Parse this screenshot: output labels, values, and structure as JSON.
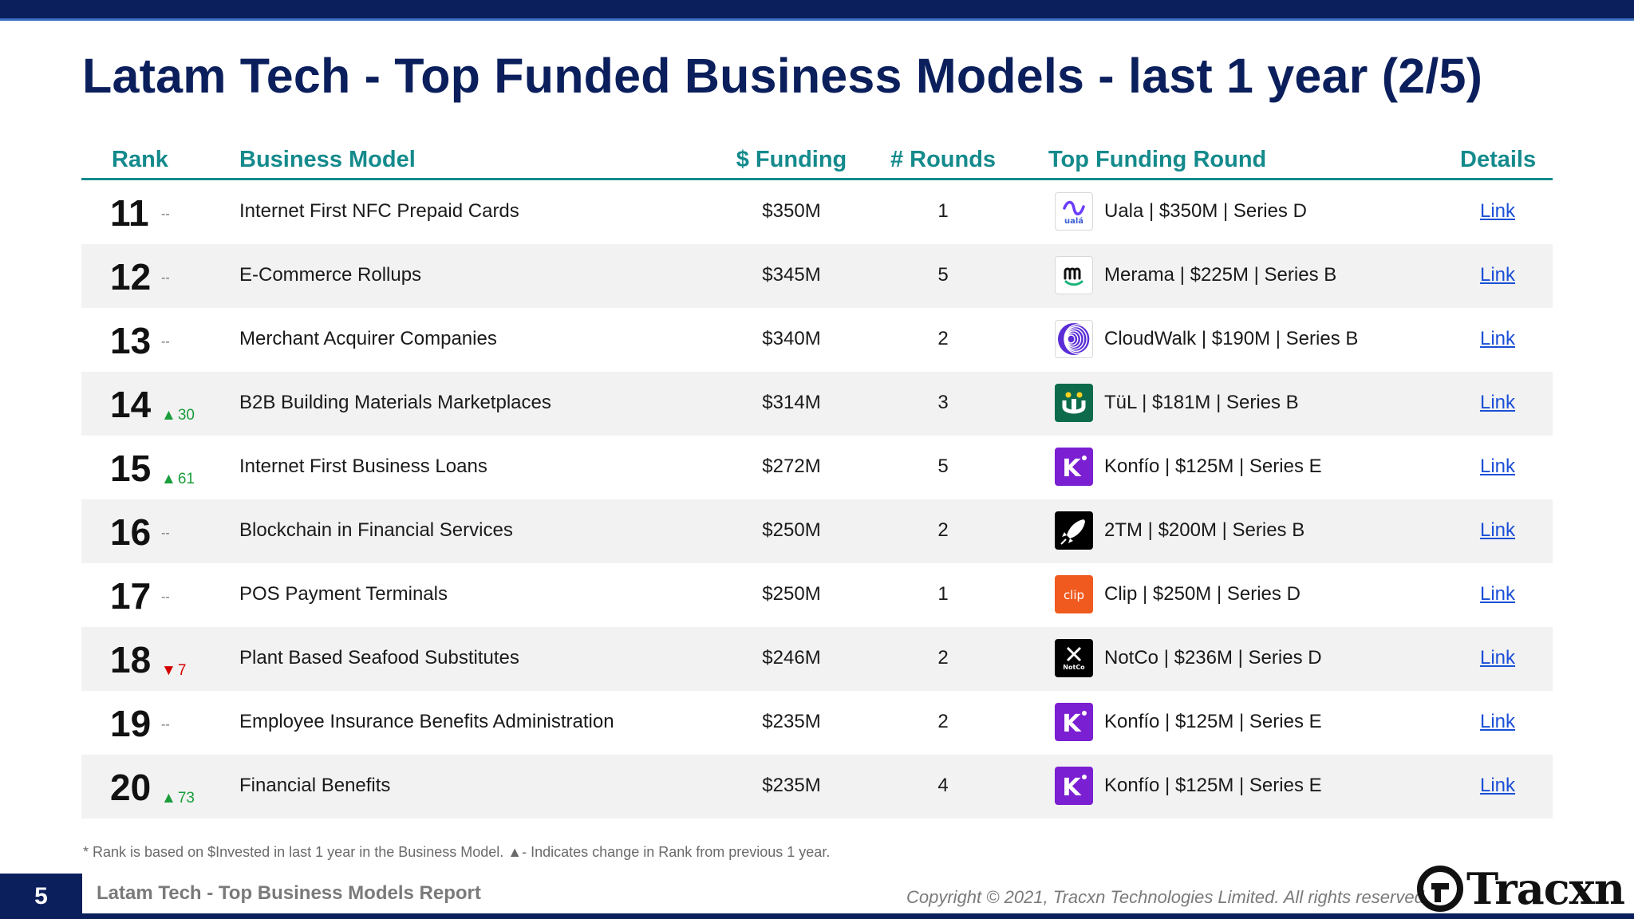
{
  "title": "Latam Tech - Top Funded Business Models - last 1 year (2/5)",
  "colors": {
    "navy": "#0b1f5c",
    "teal_header": "#148a8c",
    "up": "#1a9e3c",
    "down": "#d40000",
    "link": "#1a4fd6",
    "alt_row": "#f2f2f2"
  },
  "table": {
    "headers": {
      "rank": "Rank",
      "model": "Business Model",
      "funding": "$ Funding",
      "rounds": "# Rounds",
      "top_round": "Top Funding Round",
      "details": "Details"
    },
    "rows": [
      {
        "rank": "11",
        "change": "--",
        "change_dir": "same",
        "model": "Internet First NFC Prepaid Cards",
        "funding": "$350M",
        "rounds": "1",
        "logo_icon": "uala-logo-icon",
        "logo_text": "ualá",
        "top_round": "Uala | $350M | Series D",
        "link": "Link"
      },
      {
        "rank": "12",
        "change": "--",
        "change_dir": "same",
        "model": "E-Commerce Rollups",
        "funding": "$345M",
        "rounds": "5",
        "logo_icon": "merama-logo-icon",
        "logo_text": "m",
        "top_round": "Merama | $225M | Series B",
        "link": "Link"
      },
      {
        "rank": "13",
        "change": "--",
        "change_dir": "same",
        "model": "Merchant Acquirer Companies",
        "funding": "$340M",
        "rounds": "2",
        "logo_icon": "cloudwalk-logo-icon",
        "logo_text": "",
        "top_round": "CloudWalk | $190M | Series B",
        "link": "Link"
      },
      {
        "rank": "14",
        "change": "30",
        "change_dir": "up",
        "model": "B2B Building Materials Marketplaces",
        "funding": "$314M",
        "rounds": "3",
        "logo_icon": "tul-logo-icon",
        "logo_text": "tü",
        "top_round": "TüL | $181M | Series B",
        "link": "Link"
      },
      {
        "rank": "15",
        "change": "61",
        "change_dir": "up",
        "model": "Internet First Business Loans",
        "funding": "$272M",
        "rounds": "5",
        "logo_icon": "konfio-logo-icon",
        "logo_text": "K",
        "top_round": "Konfío | $125M | Series E",
        "link": "Link"
      },
      {
        "rank": "16",
        "change": "--",
        "change_dir": "same",
        "model": "Blockchain in Financial Services",
        "funding": "$250M",
        "rounds": "2",
        "logo_icon": "2tm-rocket-logo-icon",
        "logo_text": "",
        "top_round": "2TM | $200M | Series B",
        "link": "Link"
      },
      {
        "rank": "17",
        "change": "--",
        "change_dir": "same",
        "model": "POS Payment Terminals",
        "funding": "$250M",
        "rounds": "1",
        "logo_icon": "clip-logo-icon",
        "logo_text": "clip",
        "top_round": "Clip | $250M | Series D",
        "link": "Link"
      },
      {
        "rank": "18",
        "change": "7",
        "change_dir": "down",
        "model": "Plant Based Seafood Substitutes",
        "funding": "$246M",
        "rounds": "2",
        "logo_icon": "notco-logo-icon",
        "logo_text": "NotCo",
        "top_round": "NotCo | $236M | Series D",
        "link": "Link"
      },
      {
        "rank": "19",
        "change": "--",
        "change_dir": "same",
        "model": "Employee Insurance Benefits Administration",
        "funding": "$235M",
        "rounds": "2",
        "logo_icon": "konfio-logo-icon",
        "logo_text": "K",
        "top_round": "Konfío | $125M | Series E",
        "link": "Link"
      },
      {
        "rank": "20",
        "change": "73",
        "change_dir": "up",
        "model": "Financial Benefits",
        "funding": "$235M",
        "rounds": "4",
        "logo_icon": "konfio-logo-icon",
        "logo_text": "K",
        "top_round": "Konfío | $125M | Series E",
        "link": "Link"
      }
    ]
  },
  "footnote": "*  Rank is based on $Invested in last 1 year in the Business Model.  ▲- Indicates change in Rank from previous 1 year.",
  "footer": {
    "page_number": "5",
    "report_name": "Latam Tech - Top Business Models Report",
    "copyright": "Copyright © 2021, Tracxn Technologies Limited. All rights reserved.",
    "brand": "Tracxn"
  }
}
